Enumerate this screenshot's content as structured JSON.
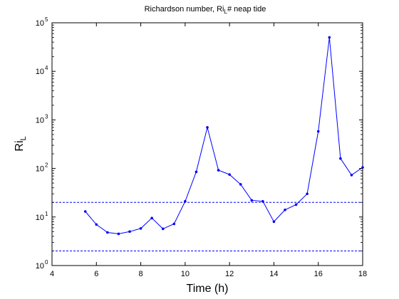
{
  "chart_data": {
    "type": "line",
    "title_main": "Richardson number, Ri",
    "title_sub": "L",
    "title_rest": "# neap tide",
    "xlabel": "Time (h)",
    "ylabel_main": "Ri",
    "ylabel_sub": "L",
    "xlim": [
      4,
      18
    ],
    "ylim": [
      1,
      100000
    ],
    "yscale": "log",
    "grid": false,
    "xticks": [
      4,
      6,
      8,
      10,
      12,
      14,
      16,
      18
    ],
    "xtick_labels": [
      "4",
      "6",
      "8",
      "10",
      "12",
      "14",
      "16",
      "18"
    ],
    "yticks": [
      1,
      10,
      100,
      1000,
      10000,
      100000
    ],
    "ytick_base": "10",
    "ytick_exponents": [
      "0",
      "1",
      "2",
      "3",
      "4",
      "5"
    ],
    "series": [
      {
        "color": "#0000ff",
        "marker": "dot",
        "x": [
          5.5,
          6.0,
          6.5,
          7.0,
          7.5,
          8.0,
          8.5,
          9.0,
          9.5,
          10.0,
          10.5,
          11.0,
          11.5,
          12.0,
          12.5,
          13.0,
          13.5,
          14.0,
          14.5,
          15.0,
          15.5,
          16.0,
          16.5,
          17.0,
          17.5,
          18.0
        ],
        "y": [
          13,
          7,
          4.8,
          4.5,
          5,
          5.8,
          9.5,
          5.7,
          7.2,
          21,
          85,
          700,
          92,
          75,
          47,
          22,
          21,
          8,
          14,
          18,
          30,
          580,
          50000,
          160,
          73,
          105
        ]
      }
    ],
    "reference_lines": [
      {
        "y": 20,
        "style": "dashed",
        "color": "#0000ff"
      },
      {
        "y": 2,
        "style": "dashed",
        "color": "#0000ff"
      }
    ]
  }
}
